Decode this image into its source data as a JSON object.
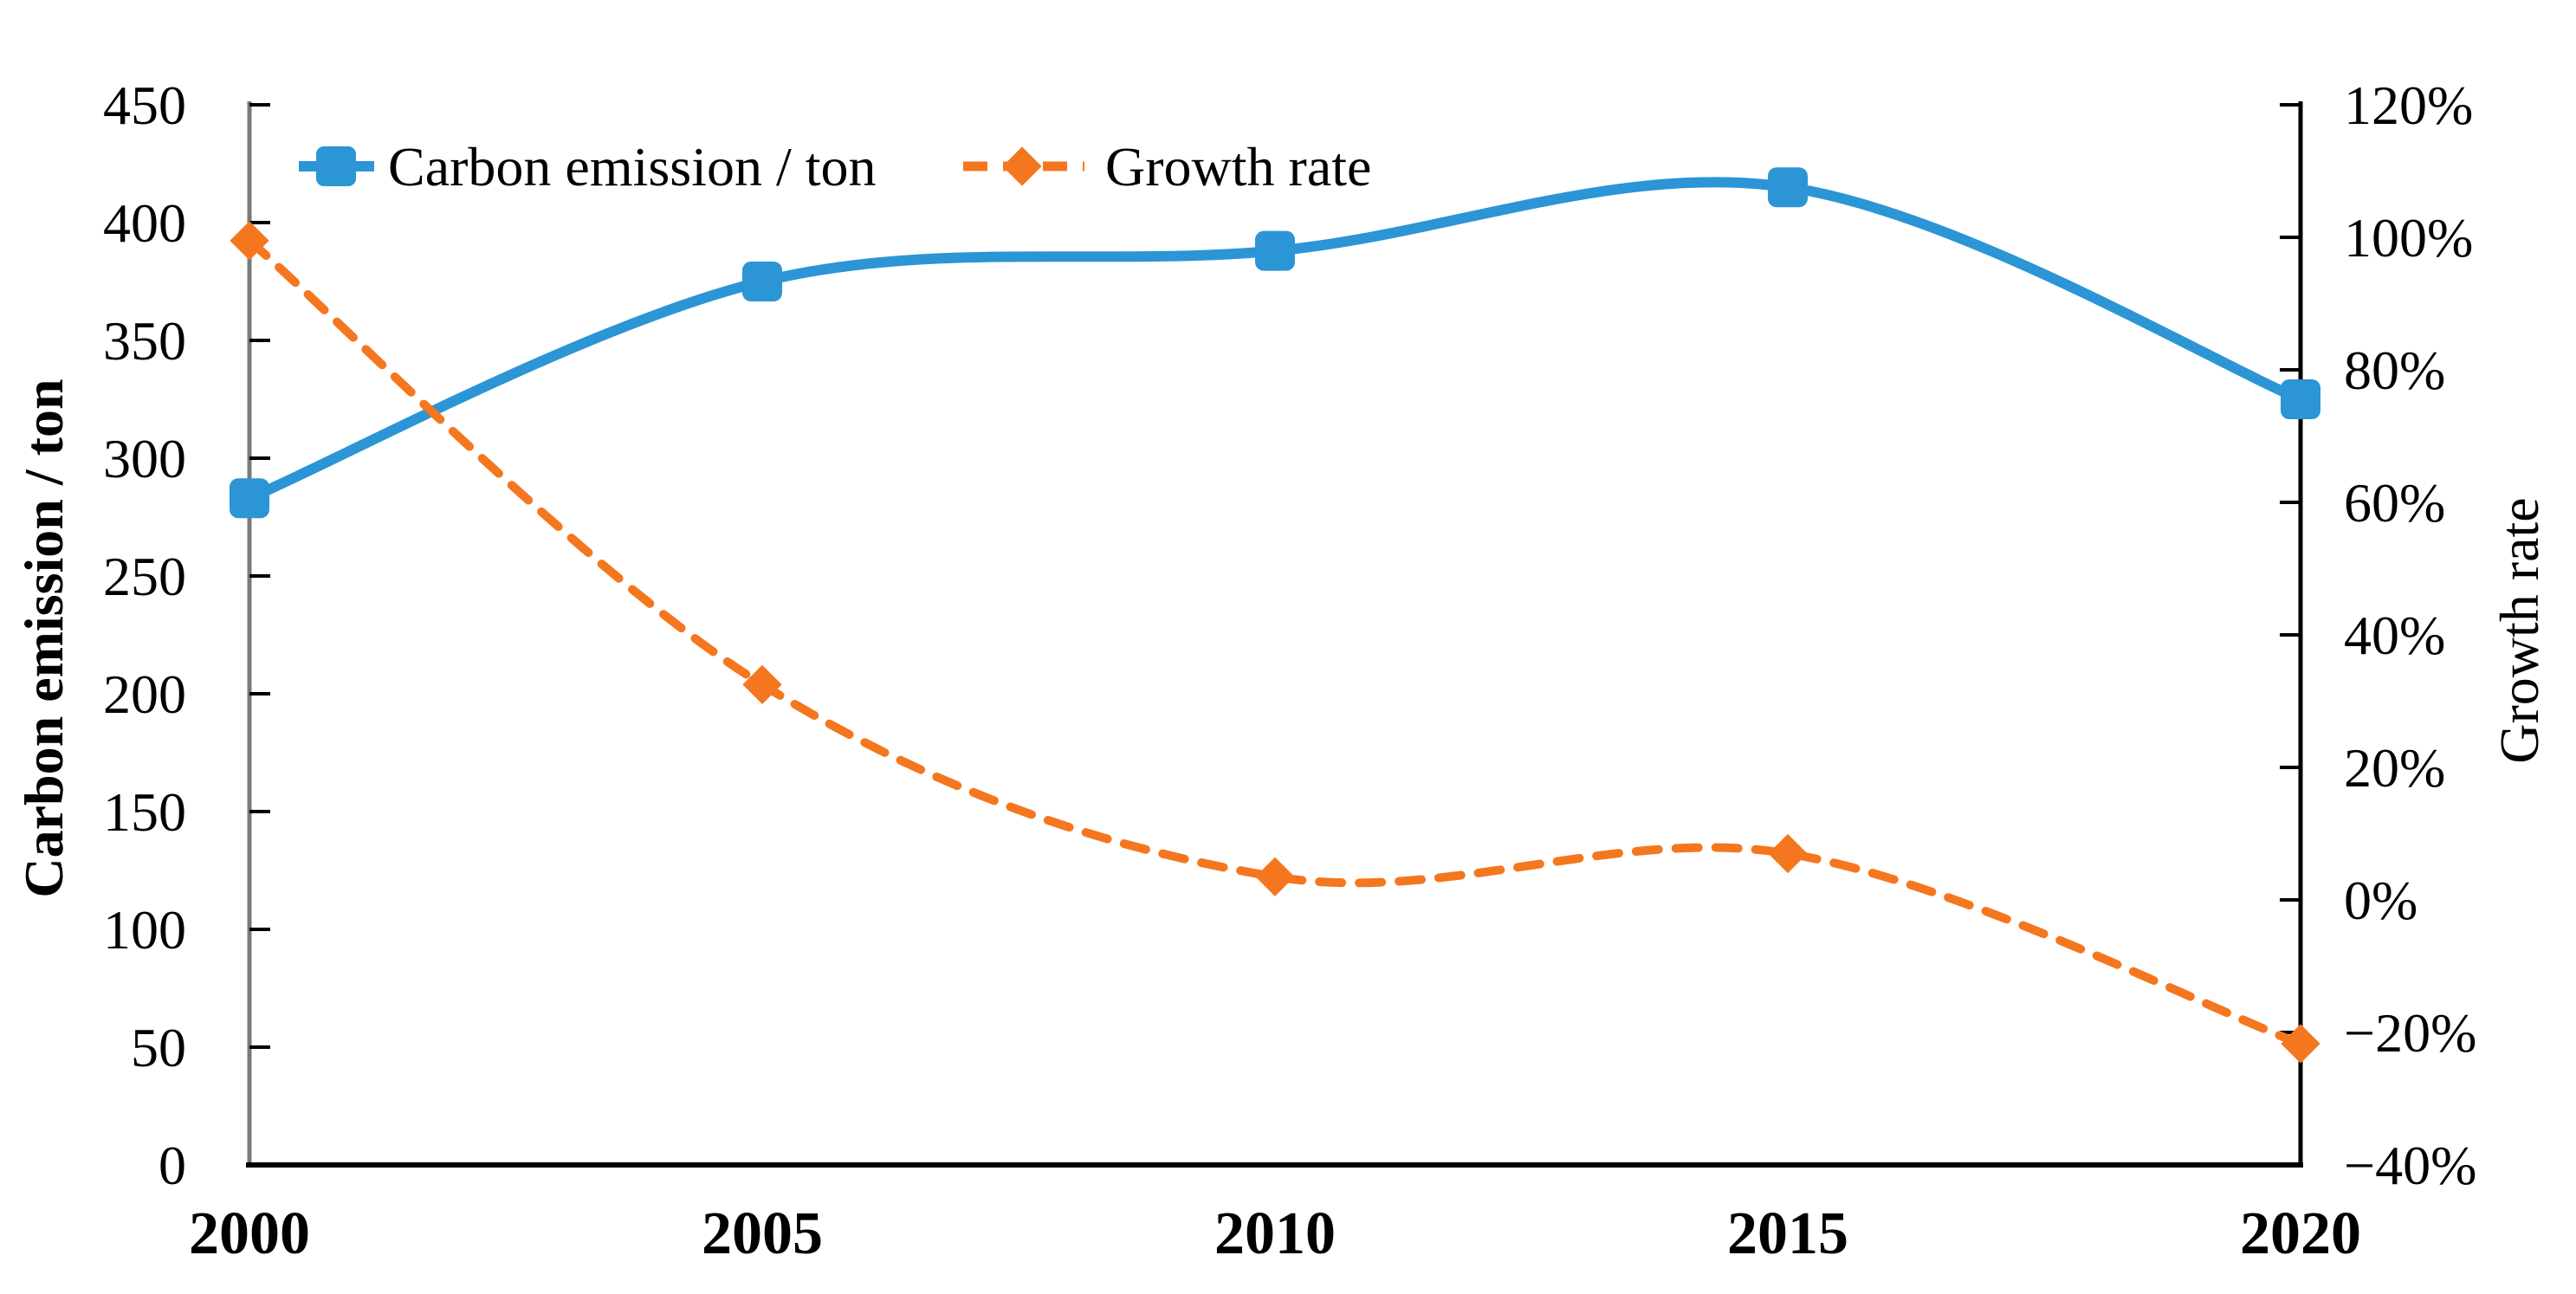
{
  "chart_data": {
    "type": "line",
    "title": "",
    "categories": [
      "2000",
      "2005",
      "2010",
      "2015",
      "2020"
    ],
    "series": [
      {
        "name": "Carbon emission / ton",
        "axis": "left",
        "values": [
          283,
          375,
          388,
          415,
          325
        ],
        "color": "#2B95D5",
        "line_style": "solid",
        "marker": "square"
      },
      {
        "name": "Growth rate",
        "axis": "right",
        "values": [
          99.5,
          32.5,
          3.5,
          7.0,
          -21.7
        ],
        "unit": "%",
        "color": "#F4771F",
        "line_style": "dashed",
        "marker": "diamond"
      }
    ],
    "x_axis": {
      "tick_labels": [
        "2000",
        "2005",
        "2010",
        "2015",
        "2020"
      ]
    },
    "y_left": {
      "title": "Carbon emission / ton",
      "min": 0,
      "max": 450,
      "tick_step": 50,
      "tick_labels": [
        "0",
        "50",
        "100",
        "150",
        "200",
        "250",
        "300",
        "350",
        "400",
        "450"
      ]
    },
    "y_right": {
      "title": "Growth rate",
      "min": -40,
      "max": 120,
      "tick_step": 20,
      "tick_labels": [
        "−40%",
        "−20%",
        "0%",
        "20%",
        "40%",
        "60%",
        "80%",
        "100%",
        "120%"
      ]
    },
    "legend": {
      "position": "top-left-inside",
      "items": [
        "Carbon emission / ton",
        "Growth rate"
      ]
    },
    "grid": false
  },
  "style": {
    "background": "#ffffff",
    "axis_color_left": "#7a7a7a",
    "axis_color": "#000000",
    "tick_color": "#000000",
    "text_color": "#000000"
  }
}
